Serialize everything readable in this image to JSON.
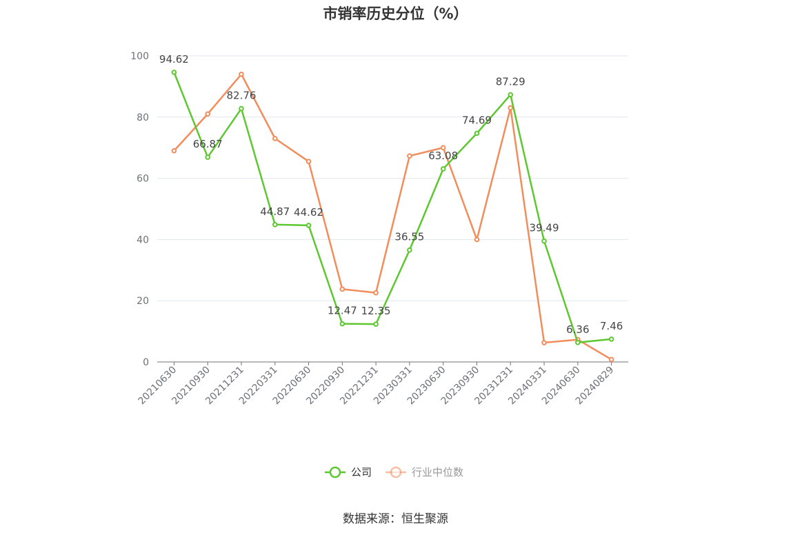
{
  "chart_data": {
    "type": "line",
    "title": "市销率历史分位（%）",
    "categories": [
      "20210630",
      "20210930",
      "20211231",
      "20220331",
      "20220630",
      "20220930",
      "20221231",
      "20230331",
      "20230630",
      "20230930",
      "20231231",
      "20240331",
      "20240630",
      "20240829"
    ],
    "ylim": [
      0,
      100
    ],
    "yticks": [
      0,
      20,
      40,
      60,
      80,
      100
    ],
    "grid": true,
    "legend_position": "bottom",
    "series": [
      {
        "name": "公司",
        "color": "#5cc72f",
        "values": [
          94.62,
          66.87,
          82.76,
          44.87,
          44.62,
          12.47,
          12.35,
          36.55,
          63.08,
          74.69,
          87.29,
          39.49,
          6.36,
          7.46
        ],
        "labels": [
          "94.62",
          "66.87",
          "82.76",
          "44.87",
          "44.62",
          "12.47",
          "12.35",
          "36.55",
          "63.08",
          "74.69",
          "87.29",
          "39.49",
          "6.36",
          "7.46"
        ]
      },
      {
        "name": "行业中位数",
        "color": "#f28c5b",
        "values": [
          69,
          81,
          94,
          73,
          65.5,
          23.8,
          22.6,
          67.3,
          70,
          40,
          83,
          6.3,
          7.3,
          0.8
        ]
      }
    ]
  },
  "source": "数据来源：恒生聚源"
}
